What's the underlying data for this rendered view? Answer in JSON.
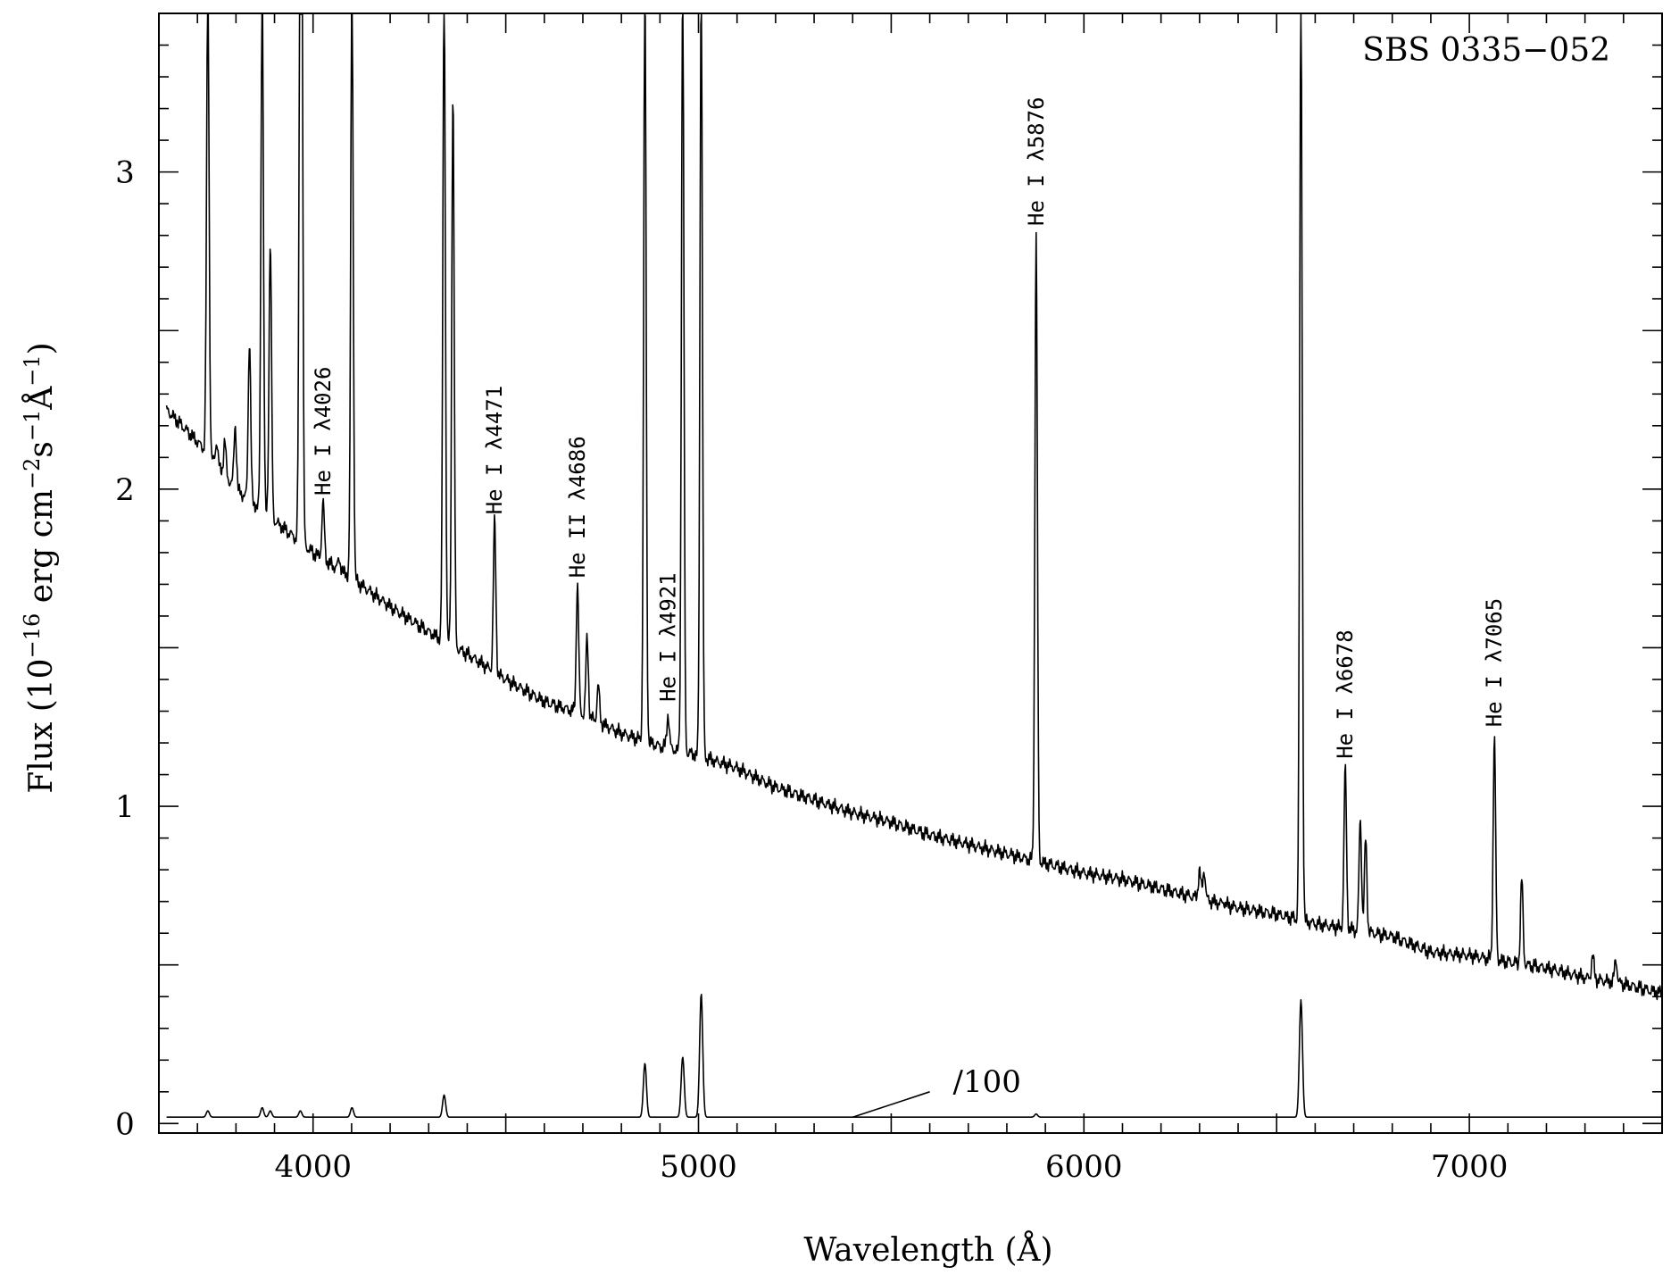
{
  "chart_data": {
    "type": "line",
    "title": "SBS 0335−052",
    "xlabel": "Wavelength (Å)",
    "ylabel_parts": [
      "Flux (10",
      "−16",
      " erg cm",
      "−2",
      "s",
      "−1",
      "Å",
      "−1",
      ")"
    ],
    "xlim": [
      3600,
      7500
    ],
    "ylim": [
      -0.03,
      3.5
    ],
    "x_ticks": [
      4000,
      5000,
      6000,
      7000
    ],
    "x_tick_labels": [
      "4000",
      "5000",
      "6000",
      "7000"
    ],
    "y_ticks": [
      0,
      1,
      2,
      3
    ],
    "y_tick_labels": [
      "0",
      "1",
      "2",
      "3"
    ],
    "grid": false,
    "scale_note": "/100",
    "continuum": [
      [
        3620,
        2.25
      ],
      [
        3700,
        2.15
      ],
      [
        3800,
        2.0
      ],
      [
        3900,
        1.9
      ],
      [
        4000,
        1.8
      ],
      [
        4100,
        1.72
      ],
      [
        4200,
        1.63
      ],
      [
        4300,
        1.55
      ],
      [
        4400,
        1.48
      ],
      [
        4500,
        1.4
      ],
      [
        4600,
        1.33
      ],
      [
        4700,
        1.29
      ],
      [
        4800,
        1.23
      ],
      [
        4900,
        1.19
      ],
      [
        5000,
        1.16
      ],
      [
        5100,
        1.12
      ],
      [
        5200,
        1.06
      ],
      [
        5300,
        1.02
      ],
      [
        5400,
        0.98
      ],
      [
        5500,
        0.95
      ],
      [
        5600,
        0.91
      ],
      [
        5700,
        0.88
      ],
      [
        5800,
        0.85
      ],
      [
        5900,
        0.82
      ],
      [
        6000,
        0.79
      ],
      [
        6100,
        0.77
      ],
      [
        6200,
        0.74
      ],
      [
        6300,
        0.71
      ],
      [
        6400,
        0.68
      ],
      [
        6500,
        0.66
      ],
      [
        6600,
        0.63
      ],
      [
        6700,
        0.61
      ],
      [
        6800,
        0.59
      ],
      [
        6900,
        0.54
      ],
      [
        7000,
        0.53
      ],
      [
        7100,
        0.51
      ],
      [
        7200,
        0.49
      ],
      [
        7300,
        0.46
      ],
      [
        7400,
        0.44
      ],
      [
        7500,
        0.41
      ]
    ],
    "emission_lines": [
      {
        "x": 3727,
        "peak": 3.6
      },
      {
        "x": 3750,
        "peak": 2.15
      },
      {
        "x": 3771,
        "peak": 2.15
      },
      {
        "x": 3798,
        "peak": 2.2
      },
      {
        "x": 3835,
        "peak": 2.47
      },
      {
        "x": 3868,
        "peak": 3.6
      },
      {
        "x": 3889,
        "peak": 2.78
      },
      {
        "x": 3967,
        "peak": 3.6
      },
      {
        "x": 3970,
        "peak": 3.6
      },
      {
        "x": 4026,
        "peak": 1.96
      },
      {
        "x": 4068,
        "peak": 1.78
      },
      {
        "x": 4101,
        "peak": 3.6
      },
      {
        "x": 4340,
        "peak": 3.6
      },
      {
        "x": 4363,
        "peak": 3.25
      },
      {
        "x": 4471,
        "peak": 1.9
      },
      {
        "x": 4686,
        "peak": 1.7
      },
      {
        "x": 4711,
        "peak": 1.53
      },
      {
        "x": 4740,
        "peak": 1.38
      },
      {
        "x": 4861,
        "peak": 3.6
      },
      {
        "x": 4921,
        "peak": 1.29
      },
      {
        "x": 4959,
        "peak": 3.6
      },
      {
        "x": 5007,
        "peak": 3.6
      },
      {
        "x": 5876,
        "peak": 2.8
      },
      {
        "x": 6300,
        "peak": 0.8
      },
      {
        "x": 6312,
        "peak": 0.8
      },
      {
        "x": 6363,
        "peak": 0.7
      },
      {
        "x": 6563,
        "peak": 3.6
      },
      {
        "x": 6678,
        "peak": 1.12
      },
      {
        "x": 6717,
        "peak": 0.96
      },
      {
        "x": 6731,
        "peak": 0.9
      },
      {
        "x": 7065,
        "peak": 1.22
      },
      {
        "x": 7136,
        "peak": 0.77
      },
      {
        "x": 7320,
        "peak": 0.53
      },
      {
        "x": 7380,
        "peak": 0.52
      }
    ],
    "scaled_spectrum": {
      "divisor": 100,
      "baseline": 0.02,
      "lines": [
        {
          "x": 3727,
          "peak": 0.04
        },
        {
          "x": 3868,
          "peak": 0.05
        },
        {
          "x": 3889,
          "peak": 0.04
        },
        {
          "x": 3967,
          "peak": 0.04
        },
        {
          "x": 4101,
          "peak": 0.05
        },
        {
          "x": 4340,
          "peak": 0.09
        },
        {
          "x": 4861,
          "peak": 0.19
        },
        {
          "x": 4959,
          "peak": 0.21
        },
        {
          "x": 5007,
          "peak": 0.41
        },
        {
          "x": 5876,
          "peak": 0.03
        },
        {
          "x": 6563,
          "peak": 0.39
        }
      ]
    },
    "annotations": [
      {
        "label": "He I λ4026",
        "x": 4026,
        "y": 1.98
      },
      {
        "label": "He I λ4471",
        "x": 4471,
        "y": 1.92
      },
      {
        "label": "He II λ4686",
        "x": 4686,
        "y": 1.72
      },
      {
        "label": "He I λ4921",
        "x": 4921,
        "y": 1.33
      },
      {
        "label": "He I λ5876",
        "x": 5876,
        "y": 2.83
      },
      {
        "label": "He I λ6678",
        "x": 6678,
        "y": 1.15
      },
      {
        "label": "He I λ7065",
        "x": 7065,
        "y": 1.25
      }
    ]
  }
}
